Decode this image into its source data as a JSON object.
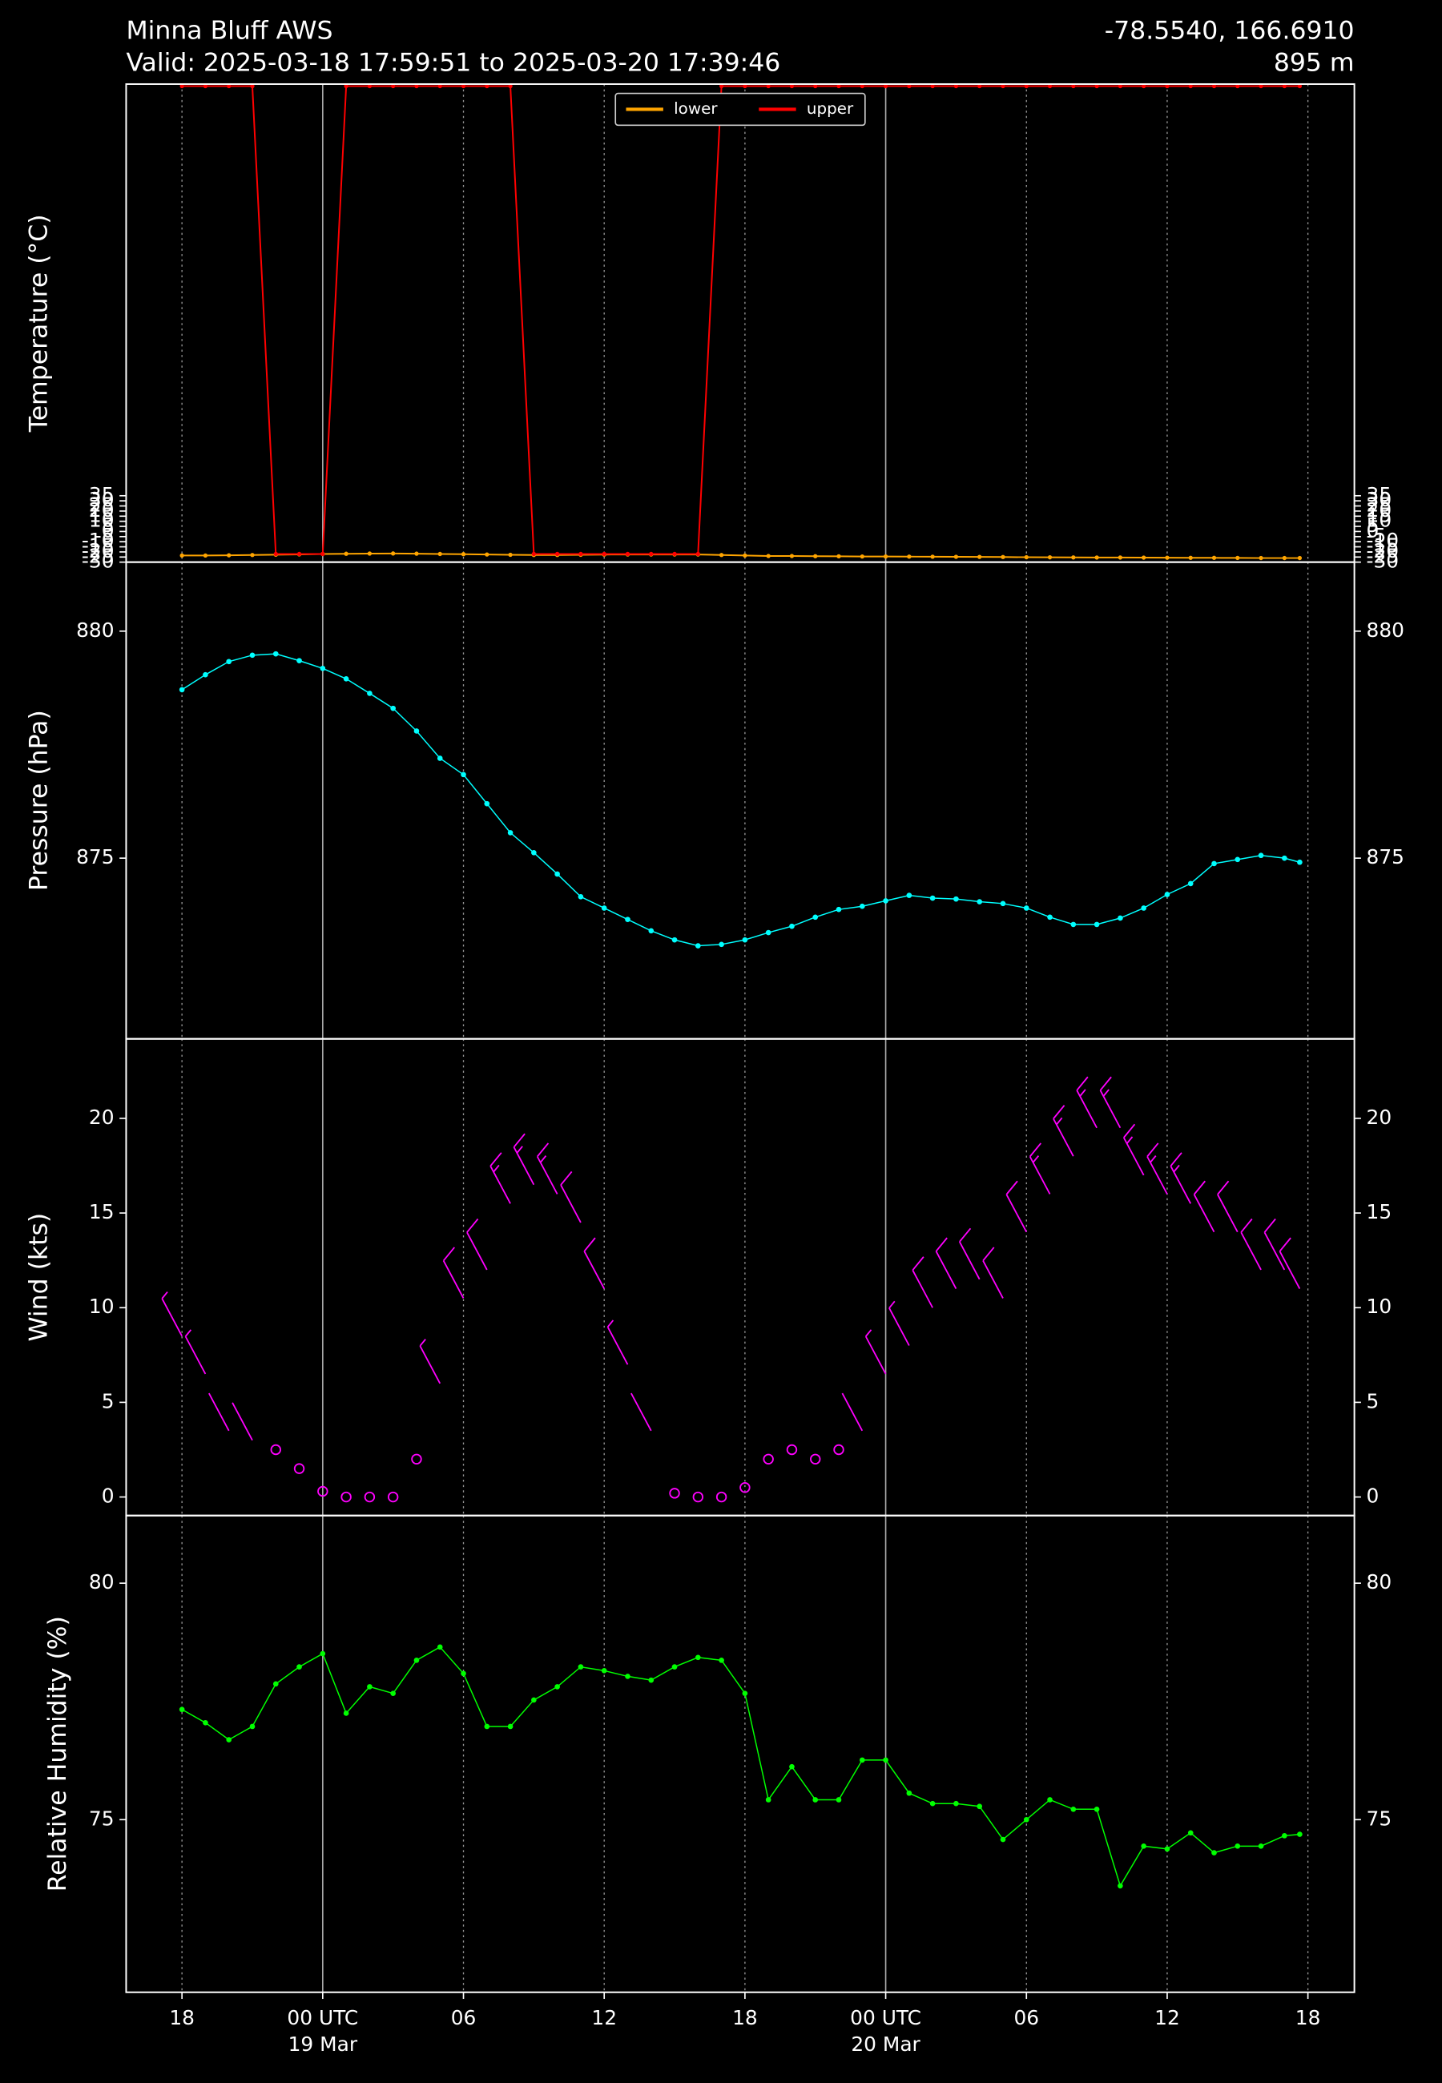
{
  "header": {
    "title": "Minna Bluff AWS",
    "valid": "Valid: 2025-03-18 17:59:51 to 2025-03-20 17:39:46",
    "coords": "-78.5540, 166.6910",
    "elevation": "895 m"
  },
  "chart_data": [
    {
      "type": "line",
      "ylabel": "Temperature (°C)",
      "legend": "upper center",
      "marker": true,
      "x": [
        0,
        1,
        2,
        3,
        4,
        5,
        6,
        7,
        8,
        9,
        10,
        11,
        12,
        13,
        14,
        15,
        16,
        17,
        18,
        19,
        20,
        21,
        22,
        23,
        24,
        25,
        26,
        27,
        28,
        29,
        30,
        31,
        32,
        33,
        34,
        35,
        36,
        37,
        38,
        39,
        40,
        41,
        42,
        43,
        44,
        45,
        46,
        47,
        47.65
      ],
      "series": [
        {
          "name": "lower",
          "color": "#ffa500",
          "values": [
            -23.5,
            -23.5,
            -23.3,
            -23,
            -22.7,
            -22.4,
            -22,
            -21.8,
            -21.6,
            -21.5,
            -21.7,
            -22,
            -22.2,
            -22.5,
            -22.8,
            -23,
            -23,
            -22.8,
            -22.6,
            -22.5,
            -22.5,
            -22.5,
            -22.5,
            -23,
            -23.5,
            -24,
            -24,
            -24.2,
            -24.3,
            -24.5,
            -24.5,
            -24.6,
            -24.7,
            -24.8,
            -24.9,
            -25,
            -25.2,
            -25.3,
            -25.4,
            -25.5,
            -25.5,
            -25.6,
            -25.7,
            -25.8,
            -25.8,
            -25.9,
            -26,
            -26,
            -26
          ]
        },
        {
          "name": "upper",
          "color": "#ff0000",
          "values": [
            436,
            436,
            436,
            436,
            -22,
            -22,
            -22,
            436,
            436,
            436,
            436,
            436,
            436,
            436,
            436,
            -22,
            -22,
            -22,
            -22,
            -22,
            -22,
            -22,
            -22,
            436,
            436,
            436,
            436,
            436,
            436,
            436,
            436,
            436,
            436,
            436,
            436,
            436,
            436,
            436,
            436,
            436,
            436,
            436,
            436,
            436,
            436,
            436,
            436,
            436,
            436
          ]
        }
      ],
      "ylim": [
        -30,
        438
      ],
      "yticks": [
        -30,
        -25,
        -20,
        -15,
        -10,
        -5,
        0,
        5,
        10,
        15,
        20,
        25,
        30,
        35
      ]
    },
    {
      "type": "line",
      "ylabel": "Pressure (hPa)",
      "marker": true,
      "x": [
        0,
        1,
        2,
        3,
        4,
        5,
        6,
        7,
        8,
        9,
        10,
        11,
        12,
        13,
        14,
        15,
        16,
        17,
        18,
        19,
        20,
        21,
        22,
        23,
        24,
        25,
        26,
        27,
        28,
        29,
        30,
        31,
        32,
        33,
        34,
        35,
        36,
        37,
        38,
        39,
        40,
        41,
        42,
        43,
        44,
        45,
        46,
        47,
        47.65
      ],
      "series": [
        {
          "name": "pressure",
          "color": "#00ffff",
          "values": [
            878.71,
            879.04,
            879.33,
            879.47,
            879.5,
            879.35,
            879.18,
            878.95,
            878.63,
            878.3,
            877.8,
            877.2,
            876.84,
            876.2,
            875.56,
            875.12,
            874.65,
            874.15,
            873.9,
            873.65,
            873.4,
            873.2,
            873.07,
            873.1,
            873.2,
            873.36,
            873.5,
            873.7,
            873.87,
            873.94,
            874.06,
            874.18,
            874.12,
            874.1,
            874.04,
            874.0,
            873.9,
            873.7,
            873.54,
            873.54,
            873.68,
            873.9,
            874.2,
            874.44,
            874.88,
            874.97,
            875.06,
            875.0,
            874.91
          ]
        }
      ],
      "ylim": [
        871.02,
        881.52
      ],
      "yticks": [
        875,
        880
      ]
    },
    {
      "type": "barb",
      "ylabel": "Wind (kts)",
      "x": [
        0,
        1,
        2,
        3,
        4,
        5,
        6,
        7,
        8,
        9,
        10,
        11,
        12,
        13,
        14,
        15,
        16,
        17,
        18,
        19,
        20,
        21,
        22,
        23,
        24,
        25,
        26,
        27,
        28,
        29,
        30,
        31,
        32,
        33,
        34,
        35,
        36,
        37,
        38,
        39,
        40,
        41,
        42,
        43,
        44,
        45,
        46,
        47,
        47.65
      ],
      "series": [
        {
          "name": "wind",
          "color": "#ff00ff",
          "values": [
            8.5,
            6.5,
            3.5,
            3,
            2.5,
            1.5,
            0.3,
            0,
            0,
            0,
            2,
            6,
            10.5,
            12,
            15.5,
            16.5,
            16,
            14.5,
            11,
            7,
            3.5,
            0.2,
            0,
            0,
            0.5,
            2,
            2.5,
            2,
            2.5,
            3.5,
            6.5,
            8,
            10,
            11,
            11.5,
            10.5,
            14,
            16,
            18,
            19.5,
            19.5,
            17,
            16,
            15.5,
            14,
            14,
            12,
            12,
            11
          ]
        }
      ],
      "ylim": [
        -0.98,
        24.2
      ],
      "yticks": [
        0,
        5,
        10,
        15,
        20
      ]
    },
    {
      "type": "line",
      "ylabel": "Relative Humidity (%)",
      "marker": true,
      "x": [
        0,
        1,
        2,
        3,
        4,
        5,
        6,
        7,
        8,
        9,
        10,
        11,
        12,
        13,
        14,
        15,
        16,
        17,
        18,
        19,
        20,
        21,
        22,
        23,
        24,
        25,
        26,
        27,
        28,
        29,
        30,
        31,
        32,
        33,
        34,
        35,
        36,
        37,
        38,
        39,
        40,
        41,
        42,
        43,
        44,
        45,
        46,
        47,
        47.65
      ],
      "series": [
        {
          "name": "rh",
          "color": "#00ff00",
          "values": [
            77.33,
            77.05,
            76.69,
            76.97,
            77.87,
            78.23,
            78.51,
            77.25,
            77.81,
            77.67,
            78.37,
            78.65,
            78.09,
            76.97,
            76.97,
            77.53,
            77.81,
            78.23,
            78.15,
            78.03,
            77.95,
            78.23,
            78.43,
            78.37,
            77.67,
            75.42,
            76.12,
            75.42,
            75.42,
            76.26,
            76.26,
            75.56,
            75.34,
            75.34,
            75.28,
            74.58,
            75.0,
            75.42,
            75.22,
            75.22,
            73.6,
            74.44,
            74.38,
            74.72,
            74.3,
            74.44,
            74.44,
            74.66,
            74.69
          ]
        }
      ],
      "ylim": [
        71.35,
        81.43
      ],
      "yticks": [
        75,
        80
      ],
      "xlim": [
        -2.38,
        49.98
      ],
      "grid": true,
      "xticks": [
        {
          "value": 0,
          "label": "18"
        },
        {
          "value": 6,
          "label": "00 UTC\n19 Mar"
        },
        {
          "value": 12,
          "label": "06"
        },
        {
          "value": 18,
          "label": "12"
        },
        {
          "value": 24,
          "label": "18"
        },
        {
          "value": 30,
          "label": "00 UTC\n20 Mar"
        },
        {
          "value": 36,
          "label": "06"
        },
        {
          "value": 42,
          "label": "12"
        },
        {
          "value": 48,
          "label": "18"
        }
      ]
    }
  ]
}
